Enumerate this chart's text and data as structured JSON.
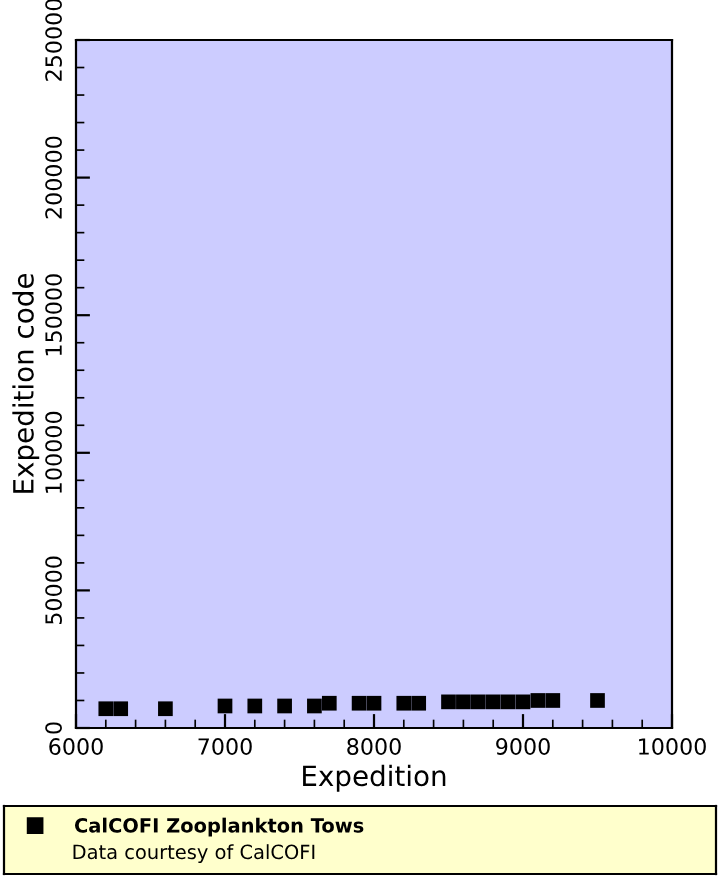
{
  "chart_data": {
    "type": "scatter",
    "xlabel": "Expedition",
    "ylabel": "Expedition code",
    "x": [
      6200,
      6300,
      6600,
      7000,
      7200,
      7400,
      7600,
      7700,
      7900,
      8000,
      8200,
      8250,
      8300,
      8500,
      8600,
      8700,
      8800,
      8900,
      9000,
      9100,
      9200,
      9500
    ],
    "series": [
      {
        "name": "CalCOFI Zooplankton Tows",
        "color": "#000000",
        "values": [
          7000,
          7000,
          7000,
          8000,
          8000,
          8000,
          8000,
          9000,
          9000,
          9000,
          9000,
          null,
          9000,
          9500,
          9500,
          9500,
          9500,
          9500,
          9500,
          10000,
          10000,
          10000
        ]
      }
    ],
    "xlim": [
      6000,
      10000
    ],
    "xticks": [
      6000,
      7000,
      8000,
      9000,
      10000
    ],
    "ylim": [
      0,
      250000
    ],
    "yticks": [
      0,
      50000,
      100000,
      150000,
      200000,
      250000
    ],
    "marker": "square",
    "legend": "bottom",
    "grid": false,
    "annotations": [
      "Data courtesy of CalCOFI"
    ]
  }
}
